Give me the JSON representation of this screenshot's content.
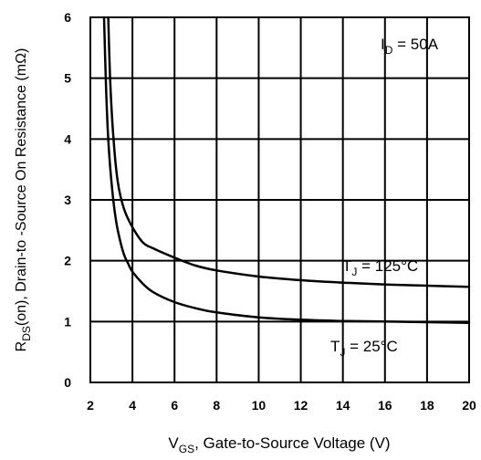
{
  "chart_data": {
    "type": "line",
    "xlim": [
      2,
      20
    ],
    "ylim": [
      0,
      6
    ],
    "x_ticks": [
      "2",
      "4",
      "6",
      "8",
      "10",
      "12",
      "14",
      "16",
      "18",
      "20"
    ],
    "y_ticks": [
      "0",
      "1",
      "2",
      "3",
      "4",
      "5",
      "6"
    ],
    "grid": true,
    "xlabel": {
      "main": "V",
      "sub": "GS",
      "rest": ", Gate-to-Source Voltage (V)"
    },
    "ylabel": {
      "main": "R",
      "sub": "DS",
      "rest": "(on),  Drain-to -Source On Resistance (mΩ)"
    },
    "annotations": {
      "id": {
        "main": "I",
        "sub": "D",
        "rest": " = 50A"
      },
      "tj_hot": {
        "main": "T",
        "sub": "J",
        "rest": " = 125°C"
      },
      "tj_cold": {
        "main": "T",
        "sub": "J",
        "rest": " = 25°C"
      }
    },
    "series": [
      {
        "x": [
          2.85,
          2.95,
          3.1,
          3.3,
          3.6,
          4.0,
          4.5,
          5.0,
          6.0,
          7.0,
          8.0,
          10.0,
          12.0,
          14.0,
          16.0,
          18.0,
          20.0
        ],
        "y": [
          6.0,
          4.9,
          4.0,
          3.3,
          2.85,
          2.55,
          2.3,
          2.2,
          2.05,
          1.92,
          1.84,
          1.74,
          1.68,
          1.64,
          1.61,
          1.59,
          1.57
        ],
        "color": "#000000"
      },
      {
        "x": [
          2.65,
          2.75,
          2.85,
          3.0,
          3.2,
          3.4,
          3.6,
          3.8,
          4.0,
          4.5,
          5.0,
          6.0,
          7.0,
          8.0,
          10.0,
          12.0,
          14.0,
          16.0,
          18.0,
          20.0
        ],
        "y": [
          6.0,
          4.8,
          4.0,
          3.3,
          2.7,
          2.35,
          2.1,
          1.95,
          1.82,
          1.62,
          1.48,
          1.32,
          1.22,
          1.15,
          1.07,
          1.03,
          1.01,
          1.0,
          0.99,
          0.98
        ],
        "color": "#000000"
      }
    ]
  }
}
